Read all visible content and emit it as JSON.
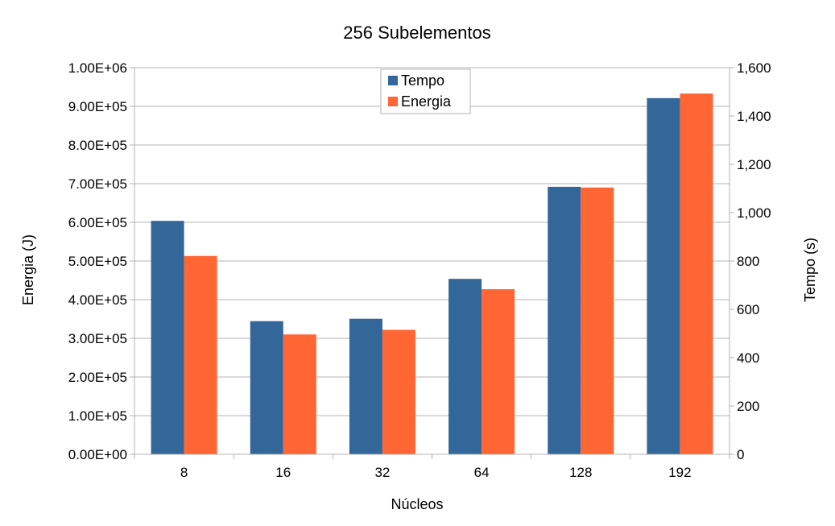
{
  "chart_data": {
    "type": "bar",
    "title": "256 Subelementos",
    "xlabel": "Núcleos",
    "ylabel_left": "Energia (J)",
    "ylabel_right": "Tempo (s)",
    "categories": [
      "8",
      "16",
      "32",
      "64",
      "128",
      "192"
    ],
    "series": [
      {
        "name": "Tempo",
        "axis": "right",
        "color": "#336699",
        "values": [
          966,
          551,
          561,
          726,
          1107,
          1474
        ]
      },
      {
        "name": "Energia",
        "axis": "left",
        "color": "#ff6633",
        "values": [
          513000,
          310000,
          322000,
          427000,
          690000,
          933000
        ]
      }
    ],
    "left_axis": {
      "ylim": [
        0,
        1000000
      ],
      "ticks": [
        "0.00E+00",
        "1.00E+05",
        "2.00E+05",
        "3.00E+05",
        "4.00E+05",
        "5.00E+05",
        "6.00E+05",
        "7.00E+05",
        "8.00E+05",
        "9.00E+05",
        "1.00E+06"
      ]
    },
    "right_axis": {
      "ylim": [
        0,
        1600
      ],
      "ticks": [
        "0",
        "200",
        "400",
        "600",
        "800",
        "1,000",
        "1,200",
        "1,400",
        "1,600"
      ]
    },
    "grid": true,
    "legend": {
      "position": "top-center",
      "entries": [
        "Tempo",
        "Energia"
      ]
    }
  }
}
